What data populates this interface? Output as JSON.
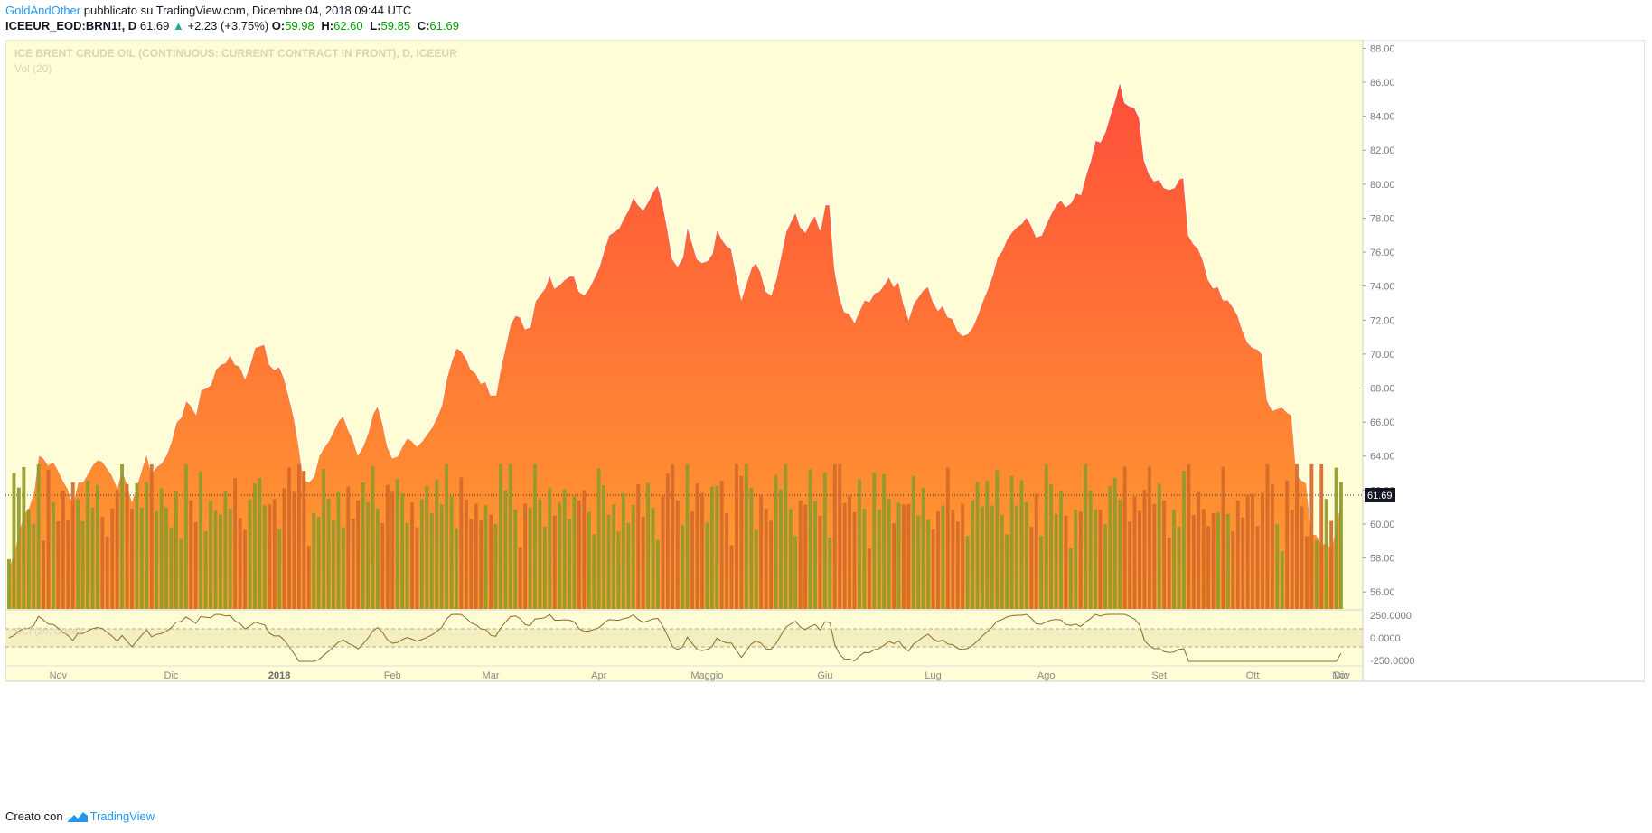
{
  "header": {
    "author": "GoldAndOther",
    "published": "pubblicato su TradingView.com, Dicembre 04, 2018 09:44 UTC",
    "symbol": "ICEEUR_EOD:BRN1!, D",
    "last": "61.69",
    "change_arrow": "▲",
    "change": "+2.23 (+3.75%)",
    "open_label": "O:",
    "open": "59.98",
    "high_label": "H:",
    "high": "62.60",
    "low_label": "L:",
    "low": "59.85",
    "close_label": "C:",
    "close": "61.69"
  },
  "footer": {
    "created_with": "Creato con",
    "brand": "TradingView",
    "brand_icon": "tradingview-logo-icon"
  },
  "colors": {
    "background": "#fffdd5",
    "area_top": "#ff4d3a",
    "area_bottom": "#ffa030",
    "vol_up": "#8f9a2a",
    "vol_down": "#d46a2a",
    "cci_line": "#8a6a2a",
    "cci_band": "#f3efc0"
  },
  "chart_data": [
    {
      "type": "area",
      "title": "ICE BRENT CRUDE OIL (CONTINUOUS: CURRENT CONTRACT IN FRONT), D, ICEEUR",
      "indicator_label": "Vol (20)",
      "last_price_label": "61.69",
      "ylim": [
        55,
        88.5
      ],
      "y_ticks": [
        "56.00",
        "58.00",
        "60.00",
        "62.00",
        "64.00",
        "66.00",
        "68.00",
        "70.00",
        "72.00",
        "74.00",
        "76.00",
        "78.00",
        "80.00",
        "82.00",
        "84.00",
        "86.00",
        "88.00"
      ],
      "x_ticks": [
        "Nov",
        "Dic",
        "2018",
        "Feb",
        "Mar",
        "Apr",
        "Maggio",
        "Giu",
        "Lug",
        "Ago",
        "Set",
        "Ott",
        "Nov",
        "Dic"
      ],
      "series": [
        {
          "values": [
            57.5,
            58.3,
            59.6,
            60.6,
            61.0,
            61.9,
            64.1,
            63.9,
            63.5,
            63.7,
            63.2,
            62.6,
            62.1,
            61.2,
            62.5,
            62.5,
            63.0,
            63.5,
            63.8,
            63.7,
            63.3,
            62.9,
            62.2,
            63.3,
            62.4,
            61.4,
            62.3,
            63.3,
            64.2,
            63.0,
            63.4,
            63.6,
            64.1,
            64.9,
            66.0,
            66.3,
            67.3,
            67.0,
            66.5,
            67.9,
            68.0,
            68.2,
            69.1,
            69.4,
            69.5,
            70.0,
            69.4,
            69.3,
            68.6,
            69.4,
            70.4,
            70.5,
            70.6,
            69.4,
            69.1,
            69.3,
            68.6,
            67.5,
            66.3,
            64.6,
            62.6,
            62.5,
            62.8,
            64.0,
            64.5,
            64.9,
            65.5,
            66.1,
            66.4,
            65.6,
            65.0,
            64.1,
            64.6,
            65.4,
            66.5,
            67.0,
            66.0,
            64.6,
            63.9,
            64.0,
            64.6,
            65.1,
            64.9,
            64.6,
            64.9,
            65.3,
            65.7,
            66.3,
            67.0,
            68.6,
            69.6,
            70.4,
            70.2,
            69.8,
            69.1,
            68.9,
            68.3,
            68.4,
            67.6,
            67.6,
            69.2,
            70.5,
            71.8,
            72.3,
            72.2,
            71.5,
            71.6,
            73.1,
            73.5,
            73.9,
            74.7,
            73.9,
            74.1,
            74.4,
            74.6,
            74.6,
            73.7,
            73.5,
            73.9,
            74.5,
            75.1,
            76.1,
            77.0,
            77.2,
            77.4,
            78.0,
            78.5,
            79.3,
            78.8,
            78.5,
            79.0,
            79.6,
            80.0,
            78.9,
            77.4,
            75.6,
            75.2,
            75.7,
            77.6,
            76.6,
            75.6,
            75.4,
            75.5,
            75.9,
            77.4,
            76.8,
            76.4,
            76.2,
            74.7,
            73.3,
            74.2,
            75.1,
            75.4,
            74.8,
            73.7,
            73.5,
            74.4,
            75.8,
            77.2,
            77.8,
            78.4,
            77.5,
            77.2,
            77.8,
            78.2,
            77.3,
            78.8,
            78.8,
            75.0,
            73.4,
            72.5,
            72.4,
            71.9,
            72.6,
            73.2,
            73.1,
            73.6,
            73.7,
            74.1,
            74.6,
            74.0,
            74.3,
            73.0,
            72.1,
            73.0,
            73.4,
            73.8,
            74.0,
            73.1,
            72.6,
            72.9,
            72.2,
            72.1,
            71.4,
            71.1,
            71.2,
            71.6,
            72.3,
            73.1,
            73.8,
            74.6,
            75.7,
            76.1,
            76.8,
            77.2,
            77.5,
            77.7,
            78.1,
            77.6,
            76.9,
            77.0,
            77.7,
            78.3,
            78.8,
            79.1,
            78.7,
            78.9,
            79.5,
            79.4,
            80.5,
            81.4,
            82.6,
            82.5,
            83.1,
            84.1,
            85.0,
            86.1,
            84.8,
            84.6,
            84.5,
            83.9,
            81.4,
            80.6,
            80.2,
            80.3,
            79.8,
            79.7,
            79.8,
            80.3,
            80.4,
            77.0,
            76.5,
            76.2,
            75.5,
            74.4,
            73.9,
            74.0,
            73.2,
            73.2,
            72.8,
            72.3,
            71.4,
            70.7,
            70.4,
            70.3,
            70.0,
            67.3,
            66.7,
            66.8,
            66.9,
            66.6,
            66.4,
            62.9,
            62.6,
            62.4,
            59.4,
            59.4,
            58.8,
            58.9,
            58.6,
            59.9,
            61.7
          ]
        }
      ]
    },
    {
      "type": "bar",
      "title": "Vol (20)",
      "ylim": [
        0,
        1
      ]
    },
    {
      "type": "line",
      "indicator_label": "CCI (20, close)",
      "ylim": [
        -300,
        300
      ],
      "y_ticks": [
        "250.0000",
        "0.0000",
        "-250.0000"
      ],
      "band": [
        -100,
        100
      ]
    }
  ]
}
